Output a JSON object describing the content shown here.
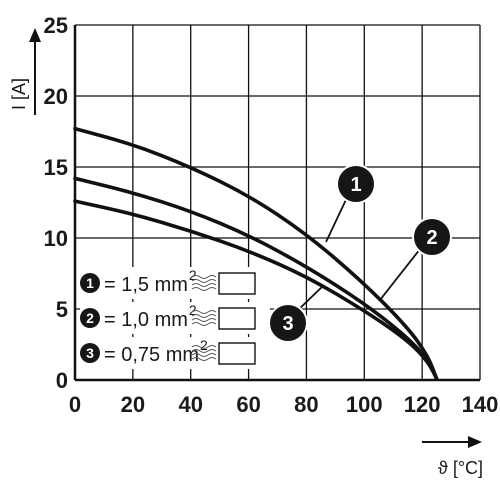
{
  "chart_data": {
    "type": "line",
    "xlabel": "ϑ [°C]",
    "ylabel": "I [A]",
    "xlim": [
      0,
      140
    ],
    "ylim": [
      0,
      25
    ],
    "xticks": [
      0,
      20,
      40,
      60,
      80,
      100,
      120,
      140
    ],
    "yticks": [
      0,
      5,
      10,
      15,
      20,
      25
    ],
    "grid": true,
    "series": [
      {
        "name": "1,5 mm²",
        "marker_label": "1",
        "x": [
          0,
          20,
          40,
          60,
          80,
          100,
          115,
          122,
          125
        ],
        "y": [
          17.7,
          16.6,
          15.0,
          13.0,
          10.3,
          6.8,
          3.7,
          1.7,
          0.1
        ]
      },
      {
        "name": "1,0 mm²",
        "marker_label": "2",
        "x": [
          0,
          20,
          40,
          60,
          80,
          100,
          115,
          122,
          125
        ],
        "y": [
          14.2,
          13.2,
          11.9,
          10.2,
          8.0,
          5.4,
          3.0,
          1.4,
          0.1
        ]
      },
      {
        "name": "0,75 mm²",
        "marker_label": "3",
        "x": [
          0,
          20,
          40,
          60,
          80,
          100,
          115,
          122,
          125
        ],
        "y": [
          12.6,
          11.7,
          10.5,
          9.1,
          7.3,
          4.9,
          2.8,
          1.3,
          0.1
        ]
      }
    ],
    "legend": [
      {
        "marker": "1",
        "text": "= 1,5 mm",
        "sup": "2"
      },
      {
        "marker": "2",
        "text": "= 1,0 mm",
        "sup": "2"
      },
      {
        "marker": "3",
        "text": "= 0,75 mm",
        "sup": "2"
      }
    ],
    "legend_placement": "bottom-left"
  }
}
